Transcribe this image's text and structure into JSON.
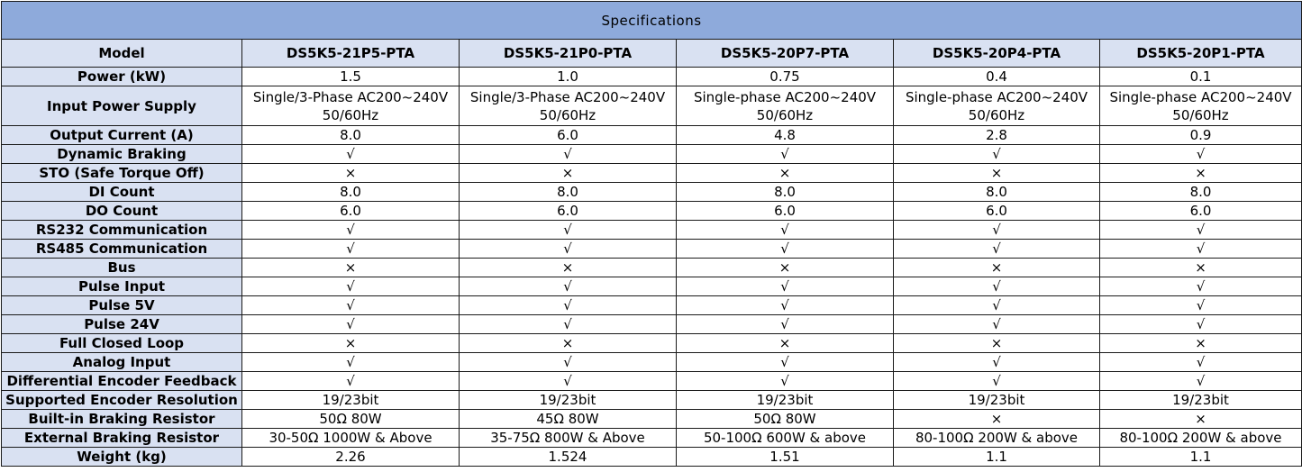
{
  "title": "Specifications",
  "header_label": "Model",
  "models": [
    "DS5K5-21P5-PTA",
    "DS5K5-21P0-PTA",
    "DS5K5-20P7-PTA",
    "DS5K5-20P4-PTA",
    "DS5K5-20P1-PTA"
  ],
  "rows": [
    {
      "label": "Power (kW)",
      "values": [
        "1.5",
        "1.0",
        "0.75",
        "0.4",
        "0.1"
      ]
    },
    {
      "label": "Input Power Supply",
      "values": [
        [
          "Single/3-Phase AC200~240V",
          "50/60Hz"
        ],
        [
          "Single/3-Phase AC200~240V",
          "50/60Hz"
        ],
        [
          "Single-phase AC200~240V",
          "50/60Hz"
        ],
        [
          "Single-phase AC200~240V",
          "50/60Hz"
        ],
        [
          "Single-phase AC200~240V",
          "50/60Hz"
        ]
      ]
    },
    {
      "label": "Output Current (A)",
      "values": [
        "8.0",
        "6.0",
        "4.8",
        "2.8",
        "0.9"
      ]
    },
    {
      "label": "Dynamic Braking",
      "values": [
        "√",
        "√",
        "√",
        "√",
        "√"
      ]
    },
    {
      "label": "STO (Safe Torque Off)",
      "values": [
        "×",
        "×",
        "×",
        "×",
        "×"
      ]
    },
    {
      "label": "DI Count",
      "values": [
        "8.0",
        "8.0",
        "8.0",
        "8.0",
        "8.0"
      ]
    },
    {
      "label": "DO Count",
      "values": [
        "6.0",
        "6.0",
        "6.0",
        "6.0",
        "6.0"
      ]
    },
    {
      "label": "RS232 Communication",
      "values": [
        "√",
        "√",
        "√",
        "√",
        "√"
      ]
    },
    {
      "label": "RS485 Communication",
      "values": [
        "√",
        "√",
        "√",
        "√",
        "√"
      ]
    },
    {
      "label": "Bus",
      "values": [
        "×",
        "×",
        "×",
        "×",
        "×"
      ]
    },
    {
      "label": "Pulse Input",
      "values": [
        "√",
        "√",
        "√",
        "√",
        "√"
      ]
    },
    {
      "label": "Pulse 5V",
      "values": [
        "√",
        "√",
        "√",
        "√",
        "√"
      ]
    },
    {
      "label": "Pulse 24V",
      "values": [
        "√",
        "√",
        "√",
        "√",
        "√"
      ]
    },
    {
      "label": "Full Closed Loop",
      "values": [
        "×",
        "×",
        "×",
        "×",
        "×"
      ]
    },
    {
      "label": "Analog Input",
      "values": [
        "√",
        "√",
        "√",
        "√",
        "√"
      ]
    },
    {
      "label": "Differential Encoder Feedback",
      "values": [
        "√",
        "√",
        "√",
        "√",
        "√"
      ]
    },
    {
      "label": "Supported Encoder Resolution",
      "values": [
        "19/23bit",
        "19/23bit",
        "19/23bit",
        "19/23bit",
        "19/23bit"
      ]
    },
    {
      "label": "Built-in Braking Resistor",
      "values": [
        "50Ω 80W",
        "45Ω 80W",
        "50Ω 80W",
        "×",
        "×"
      ]
    },
    {
      "label": "External Braking Resistor",
      "values": [
        "30-50Ω 1000W & Above",
        "35-75Ω 800W & Above",
        "50-100Ω 600W & above",
        "80-100Ω 200W & above",
        "80-100Ω 200W & above"
      ]
    },
    {
      "label": "Weight (kg)",
      "values": [
        "2.26",
        "1.524",
        "1.51",
        "1.1",
        "1.1"
      ]
    }
  ],
  "colors": {
    "title_bg": "#8eaadb",
    "header_bg": "#d9e1f2",
    "cell_bg": "#ffffff",
    "border": "#1a1a1a"
  }
}
